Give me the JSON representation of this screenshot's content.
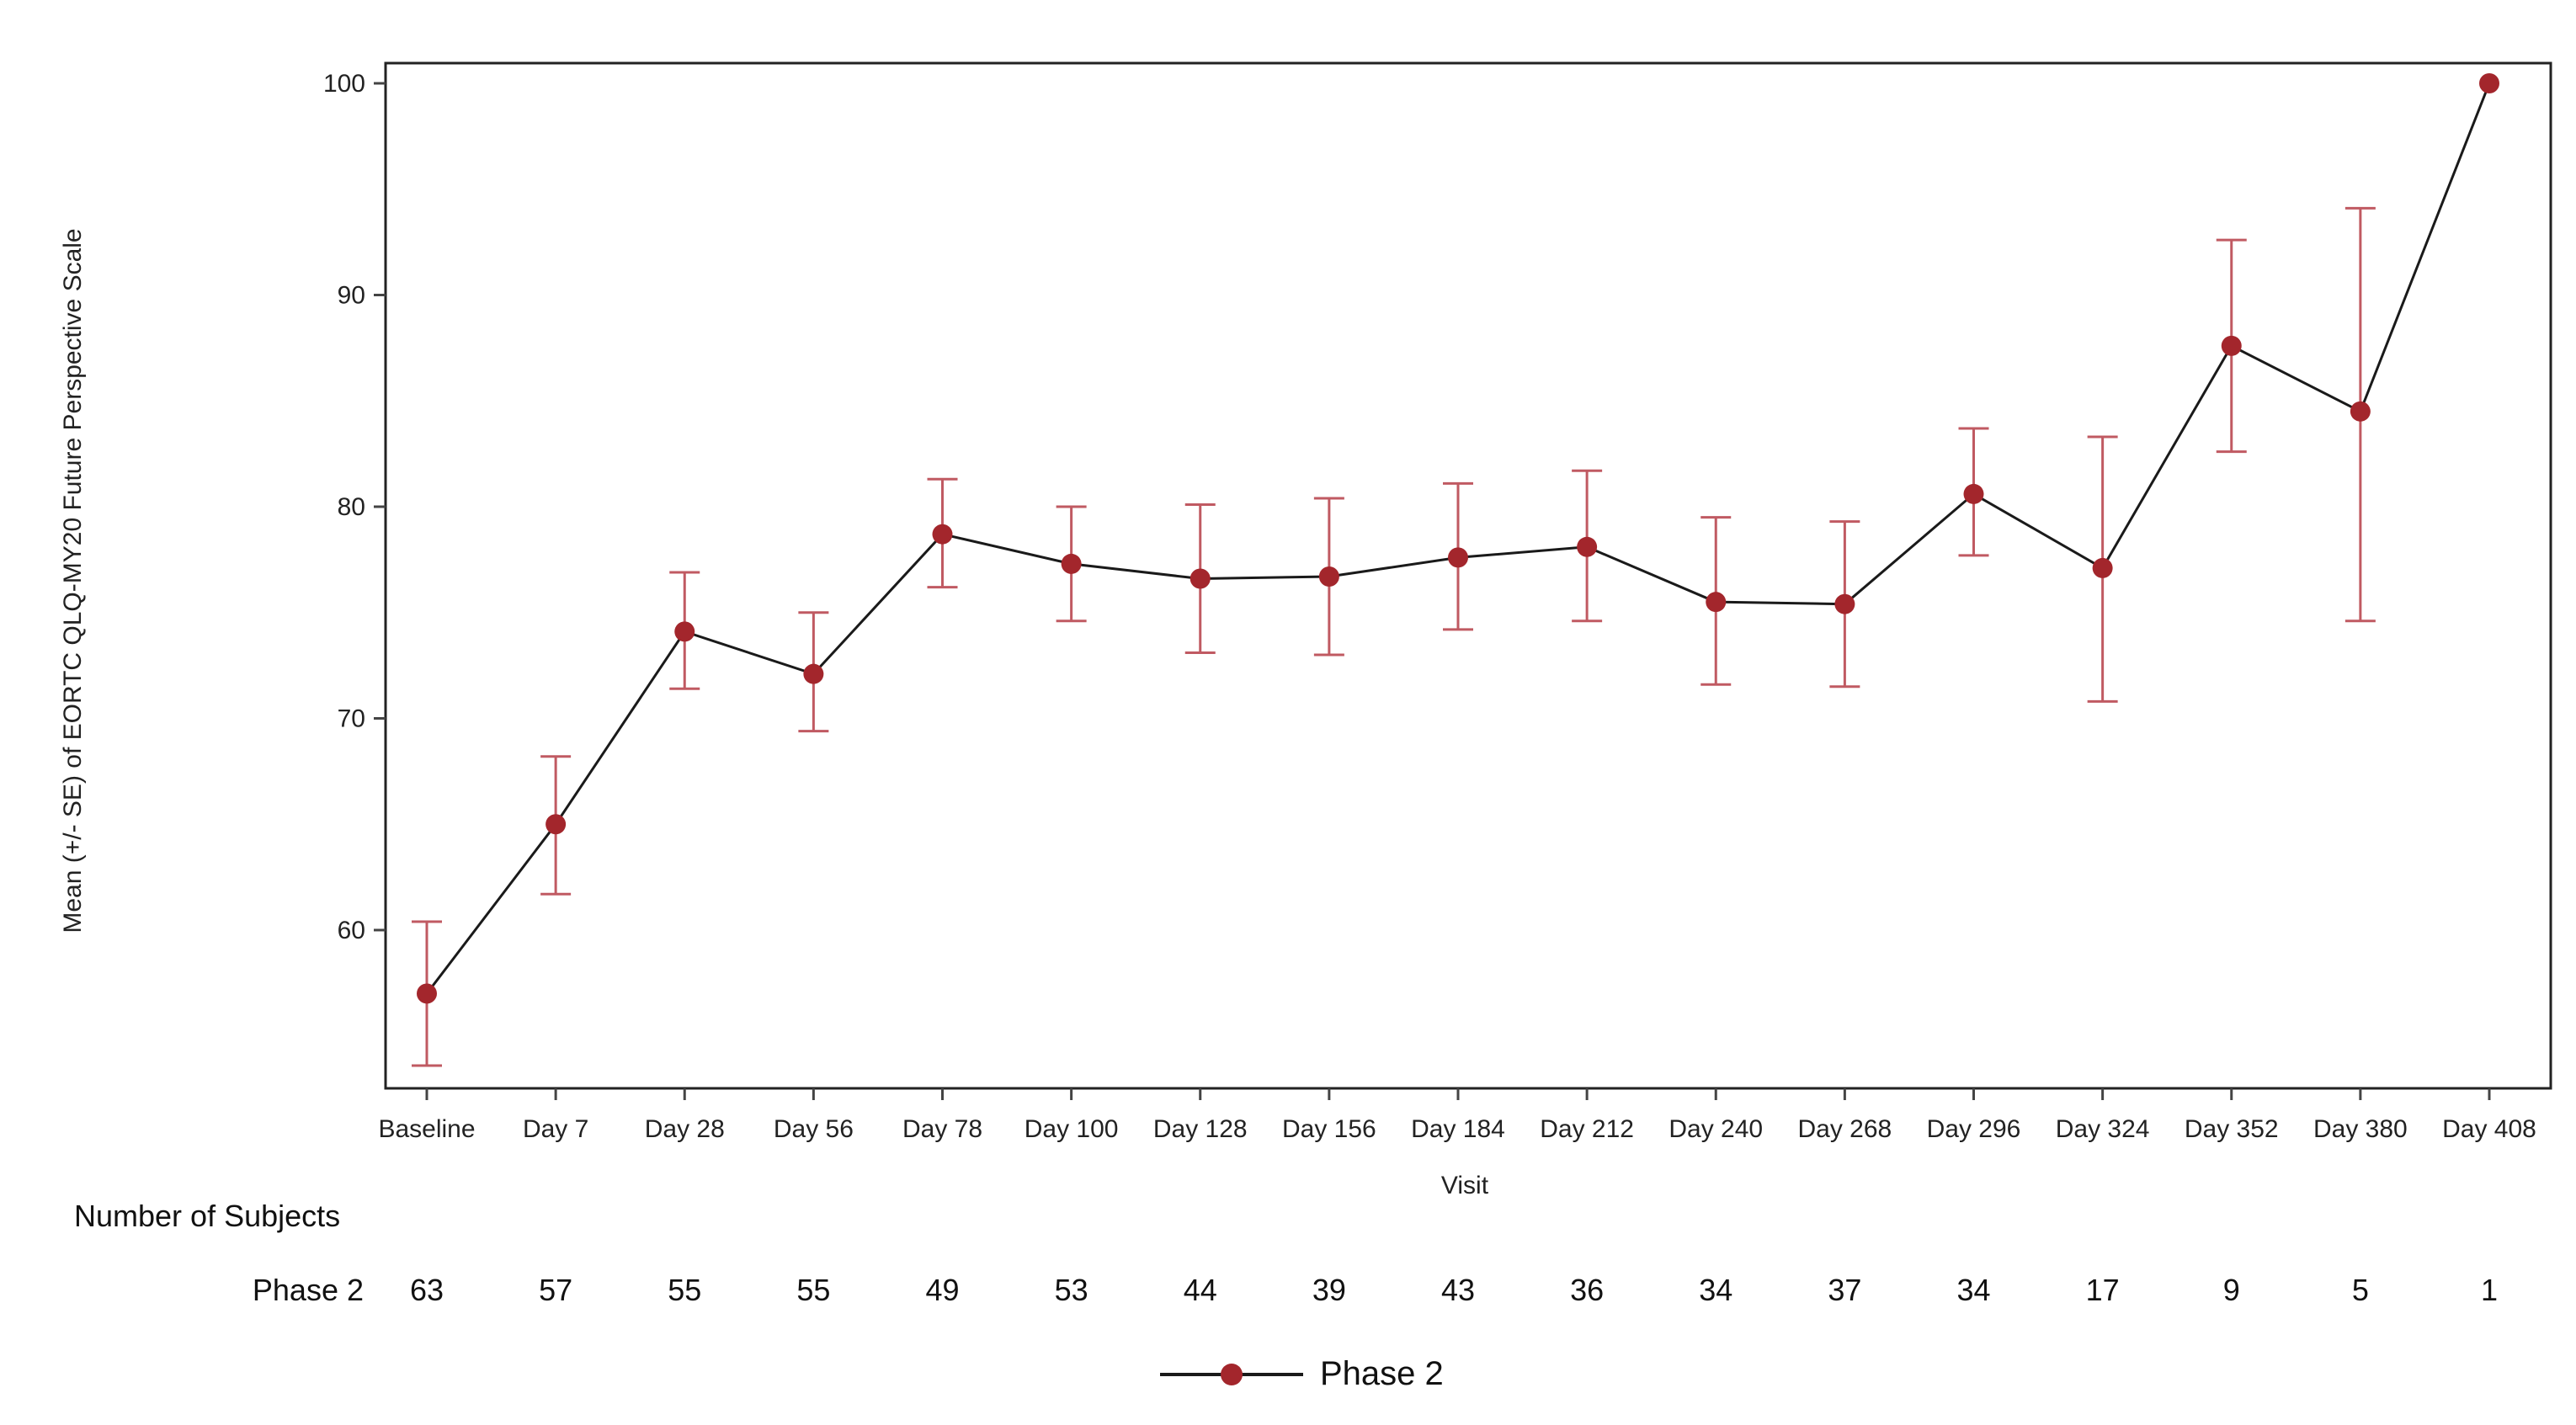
{
  "chart_data": {
    "type": "line",
    "title": "",
    "xlabel": "Visit",
    "ylabel": "Mean (+/- SE) of EORTC QLQ-MY20 Future Perspective Scale",
    "ylim": [
      52.5,
      101
    ],
    "yticks": [
      60,
      70,
      80,
      90,
      100
    ],
    "grid": false,
    "legend_position": "bottom",
    "categories": [
      "Baseline",
      "Day 7",
      "Day 28",
      "Day 56",
      "Day 78",
      "Day 100",
      "Day 128",
      "Day 156",
      "Day 184",
      "Day 212",
      "Day 240",
      "Day 268",
      "Day 296",
      "Day 324",
      "Day 352",
      "Day 380",
      "Day 408"
    ],
    "series": [
      {
        "name": "Phase 2",
        "color": "#a3262c",
        "line_color": "#1a1a1a",
        "errorbar_color": "#c05a62",
        "values": [
          57.0,
          65.0,
          74.1,
          72.1,
          78.7,
          77.3,
          76.6,
          76.7,
          77.6,
          78.1,
          75.5,
          75.4,
          80.6,
          77.1,
          87.6,
          84.5,
          100.0
        ],
        "upper": [
          60.4,
          68.2,
          76.9,
          75.0,
          81.3,
          80.0,
          80.1,
          80.4,
          81.1,
          81.7,
          79.5,
          79.3,
          83.7,
          83.3,
          92.6,
          94.1,
          null
        ],
        "lower": [
          53.6,
          61.7,
          71.4,
          69.4,
          76.2,
          74.6,
          73.1,
          73.0,
          74.2,
          74.6,
          71.6,
          71.5,
          77.7,
          70.8,
          82.6,
          74.6,
          null
        ]
      }
    ]
  },
  "risk_table": {
    "title": "Number of Subjects",
    "rows": [
      {
        "label": "Phase 2",
        "values": [
          "63",
          "57",
          "55",
          "55",
          "49",
          "53",
          "44",
          "39",
          "43",
          "36",
          "34",
          "37",
          "34",
          "17",
          "9",
          "5",
          "1"
        ]
      }
    ]
  },
  "legend": {
    "items": [
      {
        "label": "Phase 2",
        "marker": "circle-marker-icon"
      }
    ]
  },
  "y_tick_labels": [
    "100",
    "90",
    "80",
    "70",
    "60"
  ]
}
